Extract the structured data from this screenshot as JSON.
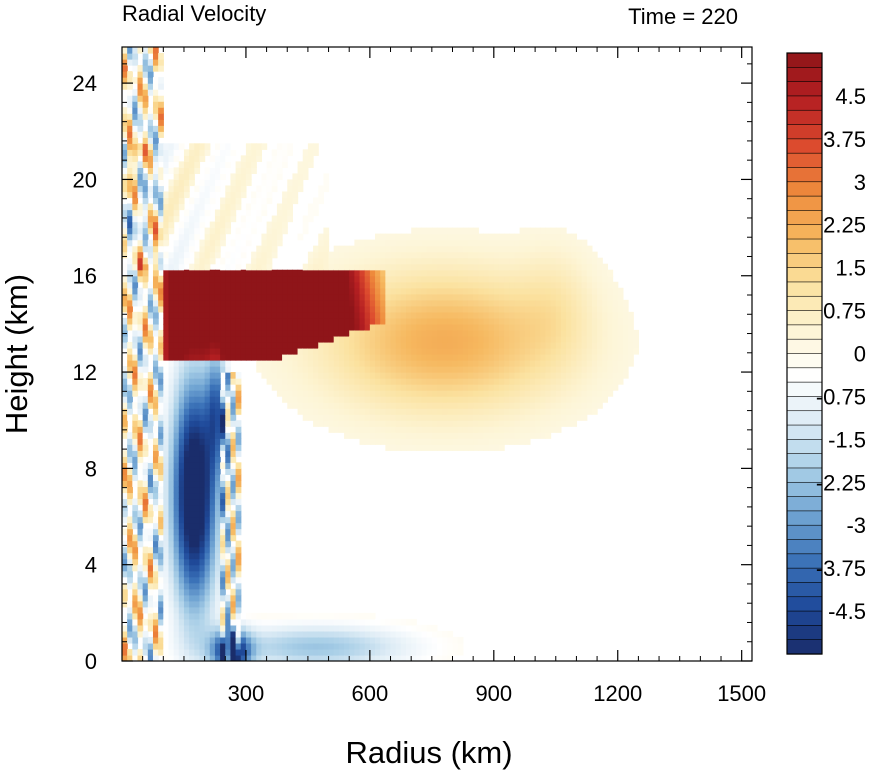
{
  "chart_data": {
    "type": "heatmap",
    "title_left": "Radial Velocity",
    "title_right": "Time = 220",
    "xlabel": "Radius (km)",
    "ylabel": "Height (km)",
    "xlim": [
      0,
      1525
    ],
    "ylim": [
      0,
      25.5
    ],
    "x_ticks": [
      "300",
      "600",
      "900",
      "1200",
      "1500"
    ],
    "x_tick_values": [
      300,
      600,
      900,
      1200,
      1500
    ],
    "y_ticks": [
      "0",
      "4",
      "8",
      "12",
      "16",
      "20",
      "24"
    ],
    "y_tick_values": [
      0,
      4,
      8,
      12,
      16,
      20,
      24
    ],
    "colorbar": {
      "labels": [
        "4.5",
        "3.75",
        "3",
        "2.25",
        "1.5",
        "0.75",
        "0",
        "-0.75",
        "-1.5",
        "-2.25",
        "-3",
        "-3.75",
        "-4.5"
      ],
      "label_values": [
        4.5,
        3.75,
        3,
        2.25,
        1.5,
        0.75,
        0,
        -0.75,
        -1.5,
        -2.25,
        -3,
        -3.75,
        -4.5
      ],
      "range": [
        -5.25,
        5.25
      ],
      "step": 0.25,
      "colors": [
        "#1a2d6b",
        "#1f4a9a",
        "#3b72b8",
        "#6fa3d2",
        "#a9cfe7",
        "#dcebf5",
        "#ffffff",
        "#fdf5d6",
        "#fbe2a0",
        "#f6b85f",
        "#ee8a3c",
        "#dc4a2e",
        "#b51f22",
        "#8f1519"
      ]
    },
    "features": [
      {
        "name": "upper-level outflow jet",
        "sign": "positive",
        "r_range_km": [
          100,
          600
        ],
        "z_range_km": [
          12.5,
          16.2
        ],
        "peak": 5.25
      },
      {
        "name": "outflow tail",
        "sign": "positive",
        "r_range_km": [
          550,
          1120
        ],
        "z_range_km": [
          9.5,
          17.5
        ],
        "peak": 2.2
      },
      {
        "name": "mid-level inflow",
        "sign": "negative",
        "r_range_km": [
          100,
          260
        ],
        "z_range_km": [
          2,
          12.5
        ],
        "peak": -5.25
      },
      {
        "name": "boundary-layer inflow",
        "sign": "negative",
        "r_range_km": [
          240,
          700
        ],
        "z_range_km": [
          0,
          1.6
        ],
        "peak": -4.5
      }
    ]
  }
}
